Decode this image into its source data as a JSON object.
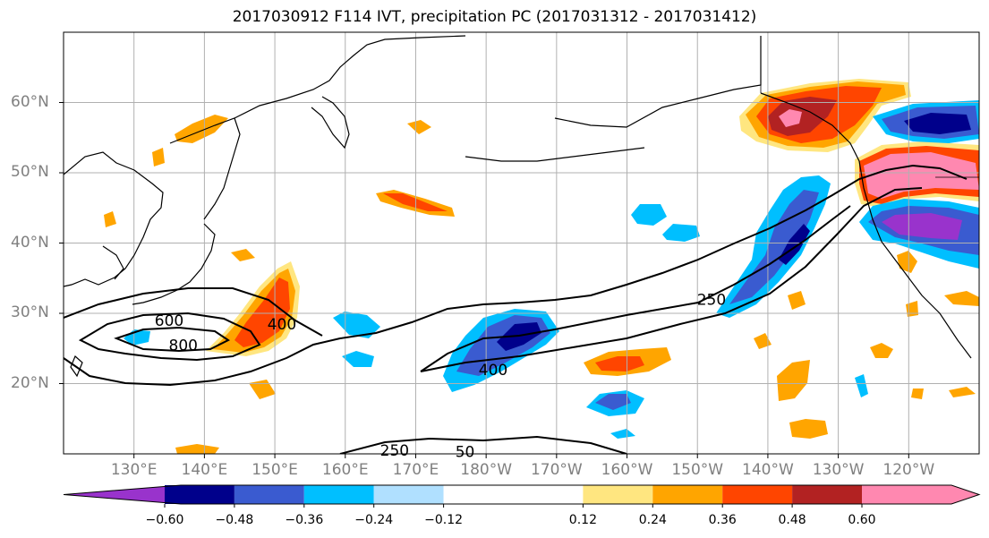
{
  "title": "2017030912 F114 IVT, precipitation PC (2017031312 - 2017031412)",
  "lat_labels": [
    {
      "text": "60°N",
      "lat": 60
    },
    {
      "text": "50°N",
      "lat": 50
    },
    {
      "text": "40°N",
      "lat": 40
    },
    {
      "text": "30°N",
      "lat": 30
    },
    {
      "text": "20°N",
      "lat": 20
    }
  ],
  "lon_labels": [
    {
      "text": "130°E",
      "lon": 130
    },
    {
      "text": "140°E",
      "lon": 140
    },
    {
      "text": "150°E",
      "lon": 150
    },
    {
      "text": "160°E",
      "lon": 160
    },
    {
      "text": "170°E",
      "lon": 170
    },
    {
      "text": "180°W",
      "lon": 180
    },
    {
      "text": "170°W",
      "lon": 190
    },
    {
      "text": "160°W",
      "lon": 200
    },
    {
      "text": "150°W",
      "lon": 210
    },
    {
      "text": "140°W",
      "lon": 220
    },
    {
      "text": "130°W",
      "lon": 230
    },
    {
      "text": "120°W",
      "lon": 240
    }
  ],
  "map_extent": {
    "lon_min": 120,
    "lon_max": 250,
    "lat_min": 10,
    "lat_max": 70
  },
  "colorbar": {
    "colors": [
      "#9933cc",
      "#00008b",
      "#3a5bd0",
      "#00bfff",
      "#b0e0ff",
      "#ffffff",
      "#ffe680",
      "#ffa500",
      "#ff4500",
      "#b22222",
      "#ff88b0"
    ],
    "ticks": [
      {
        "text": "−0.60",
        "value": -0.6
      },
      {
        "text": "−0.48",
        "value": -0.48
      },
      {
        "text": "−0.36",
        "value": -0.36
      },
      {
        "text": "−0.24",
        "value": -0.24
      },
      {
        "text": "−0.12",
        "value": -0.12
      },
      {
        "text": "0.12",
        "value": 0.12
      },
      {
        "text": "0.24",
        "value": 0.24
      },
      {
        "text": "0.36",
        "value": 0.36
      },
      {
        "text": "0.48",
        "value": 0.48
      },
      {
        "text": "0.60",
        "value": 0.6
      }
    ]
  },
  "ivt_contour_labels": [
    {
      "text": "600",
      "lon": 135,
      "lat": 29
    },
    {
      "text": "800",
      "lon": 137,
      "lat": 25.5
    },
    {
      "text": "400",
      "lon": 151,
      "lat": 28.5
    },
    {
      "text": "250",
      "lon": 212,
      "lat": 32
    },
    {
      "text": "400",
      "lon": 181,
      "lat": 22
    },
    {
      "text": "250",
      "lon": 167,
      "lat": 10.5
    },
    {
      "text": "50",
      "lon": 177,
      "lat": 10.3
    }
  ],
  "colors": {
    "land_outline": "#000000",
    "grid": "#b0b0b0",
    "contour": "#000000",
    "tick_text": "#808080"
  }
}
